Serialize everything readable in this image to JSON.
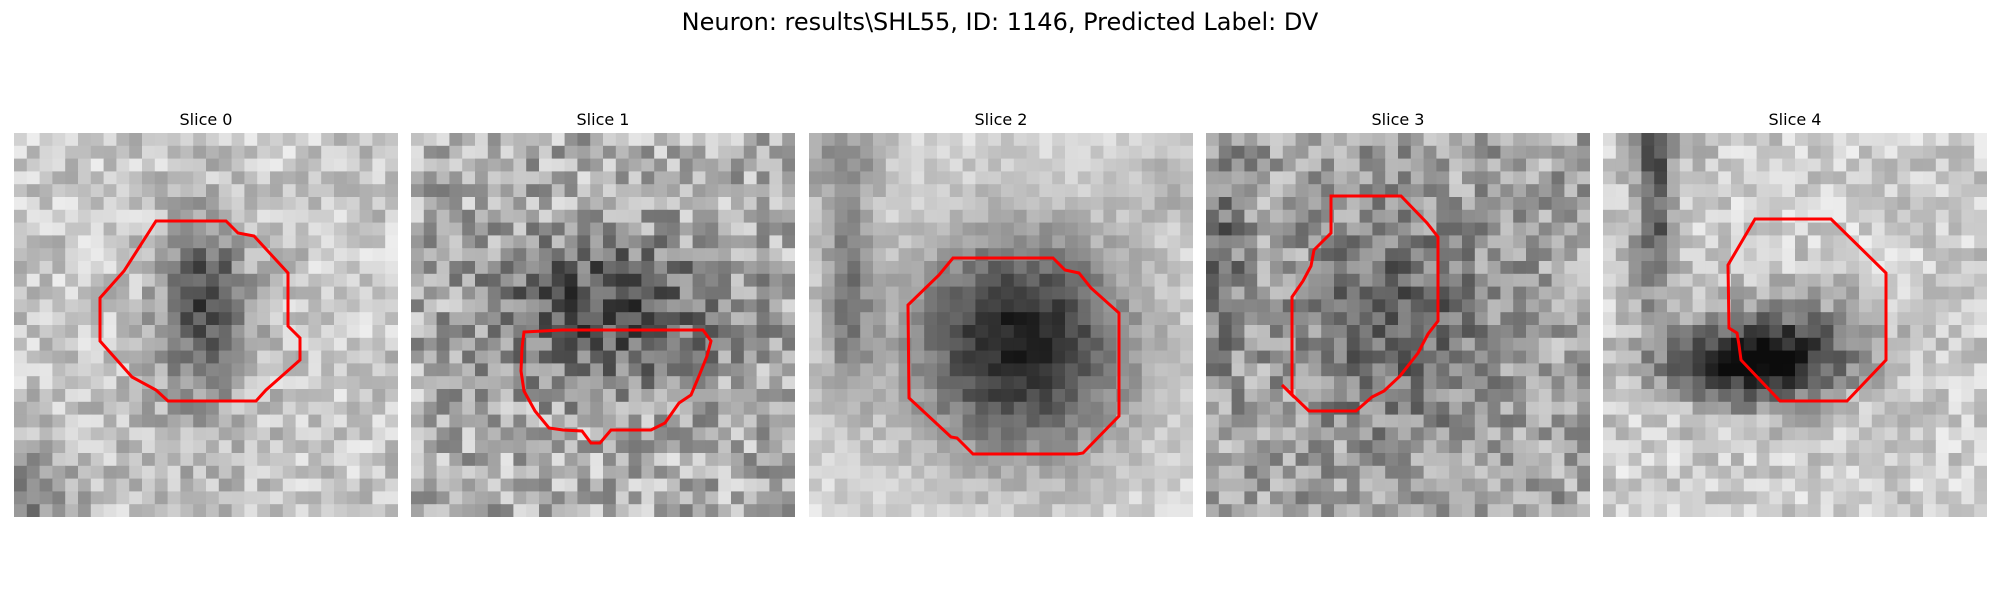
{
  "figure": {
    "title": "Neuron: results\\SHL55, ID: 1146, Predicted Label: DV"
  },
  "panels": [
    {
      "title": "Slice 0"
    },
    {
      "title": "Slice 1"
    },
    {
      "title": "Slice 2"
    },
    {
      "title": "Slice 3"
    },
    {
      "title": "Slice 4"
    }
  ],
  "colors": {
    "contour": "#ff0000",
    "background": "#ffffff"
  }
}
